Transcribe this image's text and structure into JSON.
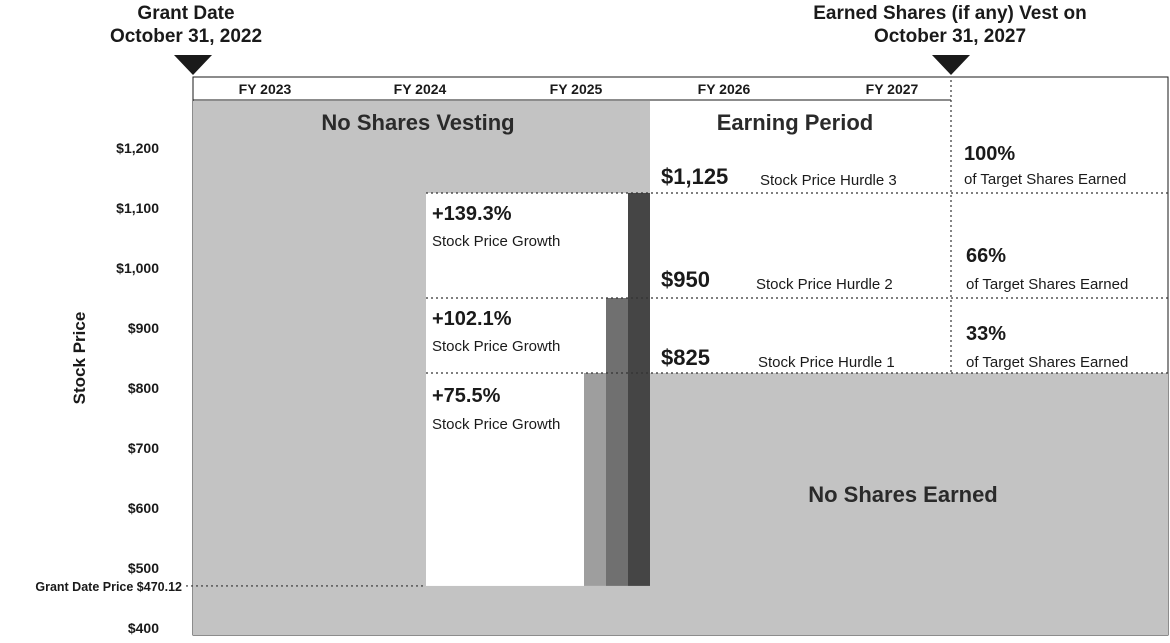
{
  "header": {
    "grant_line1": "Grant Date",
    "grant_line2": "October 31, 2022",
    "vest_line1": "Earned Shares (if any) Vest on",
    "vest_line2": "October 31, 2027"
  },
  "fiscal_years": [
    "FY 2023",
    "FY 2024",
    "FY 2025",
    "FY 2026",
    "FY 2027"
  ],
  "y_axis": {
    "label": "Stock Price",
    "min": 400,
    "max": 1270,
    "ticks": [
      {
        "value": 1200,
        "label": "$1,200"
      },
      {
        "value": 1100,
        "label": "$1,100"
      },
      {
        "value": 1000,
        "label": "$1,000"
      },
      {
        "value": 900,
        "label": "$900"
      },
      {
        "value": 800,
        "label": "$800"
      },
      {
        "value": 700,
        "label": "$700"
      },
      {
        "value": 600,
        "label": "$600"
      },
      {
        "value": 500,
        "label": "$500"
      },
      {
        "value": 400,
        "label": "$400"
      }
    ]
  },
  "grant_price": {
    "label": "Grant Date Price $470.12",
    "value": 470.12
  },
  "regions": {
    "no_vesting": "No Shares Vesting",
    "earning": "Earning Period",
    "no_earned": "No Shares Earned"
  },
  "growth": [
    {
      "pct": "+75.5%",
      "sub": "Stock Price Growth",
      "price": 825
    },
    {
      "pct": "+102.1%",
      "sub": "Stock Price Growth",
      "price": 950
    },
    {
      "pct": "+139.3%",
      "sub": "Stock Price Growth",
      "price": 1125
    }
  ],
  "hurdles": [
    {
      "price_label": "$825",
      "name": "Stock Price Hurdle 1",
      "value": 825
    },
    {
      "price_label": "$950",
      "name": "Stock Price Hurdle 2",
      "value": 950
    },
    {
      "price_label": "$1,125",
      "name": "Stock Price Hurdle 3",
      "value": 1125
    }
  ],
  "earned": [
    {
      "pct": "33%",
      "sub": "of Target Shares Earned"
    },
    {
      "pct": "66%",
      "sub": "of Target Shares Earned"
    },
    {
      "pct": "100%",
      "sub": "of Target Shares Earned"
    }
  ],
  "colors": {
    "gray_area": "#c3c3c3",
    "bar1": "#9e9e9e",
    "bar2": "#707070",
    "bar3": "#454545"
  }
}
